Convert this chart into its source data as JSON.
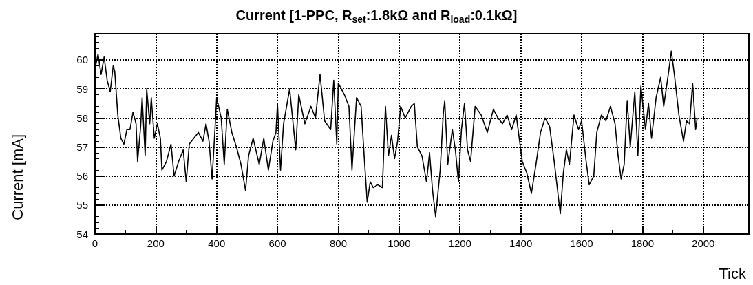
{
  "chart_data": {
    "type": "line",
    "title": "Current [1-PPC, R$_{set}$:1.8kΩ and R$_{load}$:0.1kΩ]",
    "xlabel": "Tick",
    "ylabel": "Current [mA]",
    "x": [
      0,
      10,
      20,
      30,
      40,
      50,
      60,
      65,
      75,
      85,
      95,
      105,
      115,
      125,
      135,
      140,
      150,
      155,
      165,
      170,
      180,
      185,
      195,
      205,
      215,
      220,
      235,
      250,
      260,
      275,
      290,
      300,
      310,
      325,
      340,
      355,
      365,
      375,
      385,
      395,
      400,
      415,
      425,
      435,
      450,
      465,
      480,
      495,
      505,
      520,
      540,
      555,
      570,
      585,
      595,
      600,
      610,
      620,
      640,
      660,
      670,
      690,
      710,
      725,
      740,
      755,
      775,
      785,
      795,
      800,
      820,
      835,
      845,
      860,
      875,
      885,
      895,
      905,
      915,
      930,
      945,
      955,
      965,
      975,
      985,
      995,
      1005,
      1020,
      1040,
      1050,
      1060,
      1075,
      1090,
      1100,
      1110,
      1120,
      1135,
      1145,
      1150,
      1160,
      1175,
      1185,
      1195,
      1205,
      1215,
      1225,
      1235,
      1250,
      1270,
      1290,
      1310,
      1325,
      1340,
      1355,
      1370,
      1385,
      1395,
      1405,
      1420,
      1435,
      1450,
      1465,
      1480,
      1495,
      1510,
      1520,
      1530,
      1540,
      1550,
      1560,
      1575,
      1590,
      1600,
      1615,
      1625,
      1640,
      1650,
      1665,
      1680,
      1695,
      1710,
      1720,
      1730,
      1740,
      1750,
      1760,
      1775,
      1785,
      1795,
      1810,
      1820,
      1830,
      1845,
      1860,
      1870,
      1885,
      1895,
      1905,
      1920,
      1935,
      1945,
      1955,
      1965,
      1975,
      1980
    ],
    "series": [
      {
        "color": "#000000",
        "values": [
          59.7,
          60.2,
          59.5,
          60.1,
          59.3,
          58.9,
          59.8,
          59.6,
          58.1,
          57.3,
          57.1,
          57.6,
          57.6,
          58.2,
          57.8,
          56.5,
          57.7,
          58.7,
          56.7,
          59.0,
          57.8,
          58.7,
          57.3,
          57.8,
          57.3,
          56.2,
          56.5,
          57.1,
          56.0,
          56.5,
          56.9,
          55.8,
          57.1,
          57.3,
          57.5,
          57.2,
          57.8,
          57.2,
          55.9,
          57.7,
          58.7,
          58.0,
          56.4,
          58.3,
          57.5,
          57.0,
          56.4,
          55.5,
          56.7,
          57.3,
          56.4,
          57.3,
          56.2,
          57.2,
          57.5,
          58.5,
          56.2,
          57.8,
          59.0,
          56.9,
          58.8,
          57.8,
          58.4,
          58.0,
          59.5,
          57.9,
          57.6,
          59.3,
          57.1,
          59.2,
          58.8,
          58.4,
          56.2,
          58.7,
          58.4,
          56.7,
          55.1,
          55.8,
          55.6,
          55.7,
          55.6,
          58.4,
          56.7,
          57.4,
          56.6,
          57.2,
          58.4,
          58.0,
          58.4,
          58.5,
          57.0,
          56.7,
          55.8,
          56.8,
          55.5,
          54.6,
          56.2,
          58.1,
          58.6,
          56.4,
          57.6,
          56.9,
          55.8,
          57.6,
          58.5,
          56.9,
          56.5,
          58.4,
          58.1,
          57.5,
          58.3,
          58.0,
          57.8,
          58.1,
          57.6,
          58.1,
          57.3,
          56.5,
          56.1,
          55.4,
          56.4,
          57.5,
          58.0,
          57.7,
          56.5,
          55.6,
          54.7,
          56.1,
          56.9,
          56.4,
          58.1,
          57.6,
          57.9,
          56.5,
          55.7,
          56.0,
          57.5,
          58.1,
          57.9,
          58.4,
          57.8,
          56.7,
          55.9,
          56.4,
          58.6,
          57.0,
          58.9,
          56.7,
          59.1,
          57.6,
          58.5,
          57.3,
          58.7,
          59.4,
          58.4,
          59.5,
          60.3,
          59.5,
          58.1,
          57.2,
          57.9,
          57.8,
          59.2,
          57.6,
          58.0
        ]
      }
    ],
    "xlim": [
      0,
      2150
    ],
    "xticks": [
      0,
      200,
      400,
      600,
      800,
      1000,
      1200,
      1400,
      1600,
      1800,
      2000
    ],
    "ylim": [
      54,
      60.9
    ],
    "yticks": [
      54,
      55,
      56,
      57,
      58,
      59,
      60
    ],
    "grid": true,
    "marker": "none",
    "line_style": "solid"
  }
}
